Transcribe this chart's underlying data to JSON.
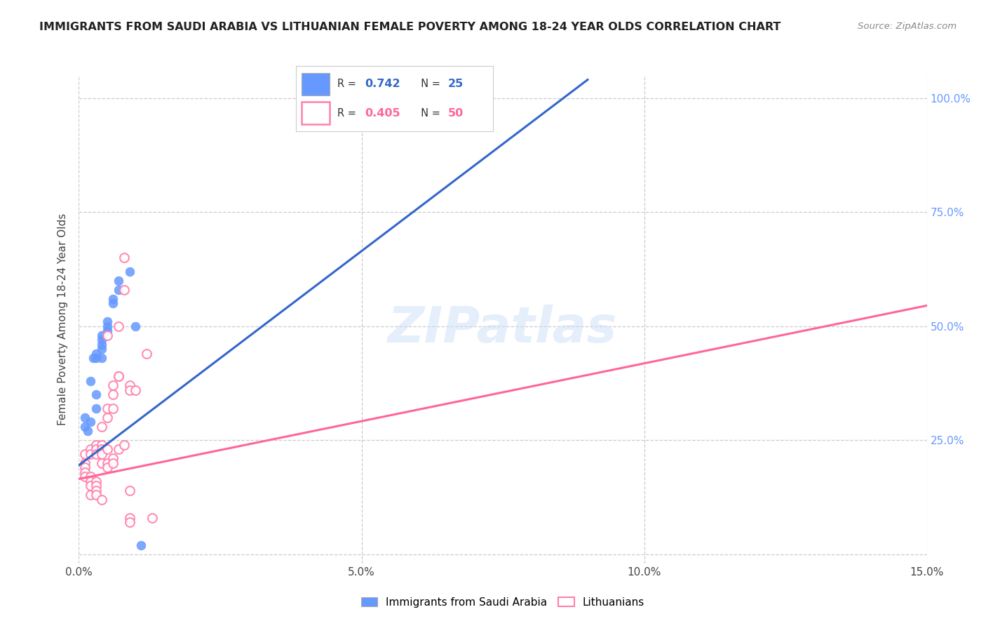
{
  "title": "IMMIGRANTS FROM SAUDI ARABIA VS LITHUANIAN FEMALE POVERTY AMONG 18-24 YEAR OLDS CORRELATION CHART",
  "source": "Source: ZipAtlas.com",
  "ylabel": "Female Poverty Among 18-24 Year Olds",
  "legend_blue": "Immigrants from Saudi Arabia",
  "legend_pink": "Lithuanians",
  "R_blue": 0.742,
  "N_blue": 25,
  "R_pink": 0.405,
  "N_pink": 50,
  "watermark": "ZIPatlas",
  "blue_color": "#6699ff",
  "pink_color": "#ff80aa",
  "trendline_blue": "#3366cc",
  "trendline_pink": "#ff6699",
  "blue_scatter": [
    [
      0.001,
      0.28
    ],
    [
      0.001,
      0.3
    ],
    [
      0.0015,
      0.27
    ],
    [
      0.002,
      0.29
    ],
    [
      0.002,
      0.38
    ],
    [
      0.0025,
      0.43
    ],
    [
      0.003,
      0.32
    ],
    [
      0.003,
      0.35
    ],
    [
      0.003,
      0.43
    ],
    [
      0.003,
      0.44
    ],
    [
      0.004,
      0.43
    ],
    [
      0.004,
      0.45
    ],
    [
      0.004,
      0.46
    ],
    [
      0.004,
      0.47
    ],
    [
      0.004,
      0.48
    ],
    [
      0.005,
      0.49
    ],
    [
      0.005,
      0.5
    ],
    [
      0.005,
      0.51
    ],
    [
      0.006,
      0.55
    ],
    [
      0.006,
      0.56
    ],
    [
      0.007,
      0.58
    ],
    [
      0.007,
      0.6
    ],
    [
      0.009,
      0.62
    ],
    [
      0.01,
      0.5
    ],
    [
      0.011,
      0.02
    ]
  ],
  "pink_scatter": [
    [
      0.001,
      0.22
    ],
    [
      0.001,
      0.2
    ],
    [
      0.001,
      0.19
    ],
    [
      0.001,
      0.18
    ],
    [
      0.001,
      0.17
    ],
    [
      0.002,
      0.23
    ],
    [
      0.002,
      0.22
    ],
    [
      0.002,
      0.17
    ],
    [
      0.002,
      0.16
    ],
    [
      0.002,
      0.15
    ],
    [
      0.002,
      0.13
    ],
    [
      0.003,
      0.24
    ],
    [
      0.003,
      0.23
    ],
    [
      0.003,
      0.22
    ],
    [
      0.003,
      0.16
    ],
    [
      0.003,
      0.15
    ],
    [
      0.003,
      0.14
    ],
    [
      0.003,
      0.13
    ],
    [
      0.004,
      0.28
    ],
    [
      0.004,
      0.24
    ],
    [
      0.004,
      0.23
    ],
    [
      0.004,
      0.22
    ],
    [
      0.004,
      0.2
    ],
    [
      0.004,
      0.12
    ],
    [
      0.005,
      0.32
    ],
    [
      0.005,
      0.3
    ],
    [
      0.005,
      0.48
    ],
    [
      0.005,
      0.23
    ],
    [
      0.005,
      0.2
    ],
    [
      0.005,
      0.19
    ],
    [
      0.006,
      0.37
    ],
    [
      0.006,
      0.35
    ],
    [
      0.006,
      0.32
    ],
    [
      0.006,
      0.21
    ],
    [
      0.006,
      0.2
    ],
    [
      0.007,
      0.5
    ],
    [
      0.007,
      0.39
    ],
    [
      0.007,
      0.23
    ],
    [
      0.007,
      0.39
    ],
    [
      0.008,
      0.24
    ],
    [
      0.008,
      0.65
    ],
    [
      0.008,
      0.58
    ],
    [
      0.009,
      0.37
    ],
    [
      0.009,
      0.36
    ],
    [
      0.009,
      0.14
    ],
    [
      0.009,
      0.08
    ],
    [
      0.009,
      0.07
    ],
    [
      0.01,
      0.36
    ],
    [
      0.012,
      0.44
    ],
    [
      0.013,
      0.08
    ]
  ],
  "xlim": [
    0,
    0.15
  ],
  "ylim": [
    -0.02,
    1.05
  ],
  "blue_trend_x": [
    0.0,
    0.09
  ],
  "blue_trend_y": [
    0.195,
    1.04
  ],
  "pink_trend_x": [
    0.0,
    0.15
  ],
  "pink_trend_y": [
    0.165,
    0.545
  ]
}
